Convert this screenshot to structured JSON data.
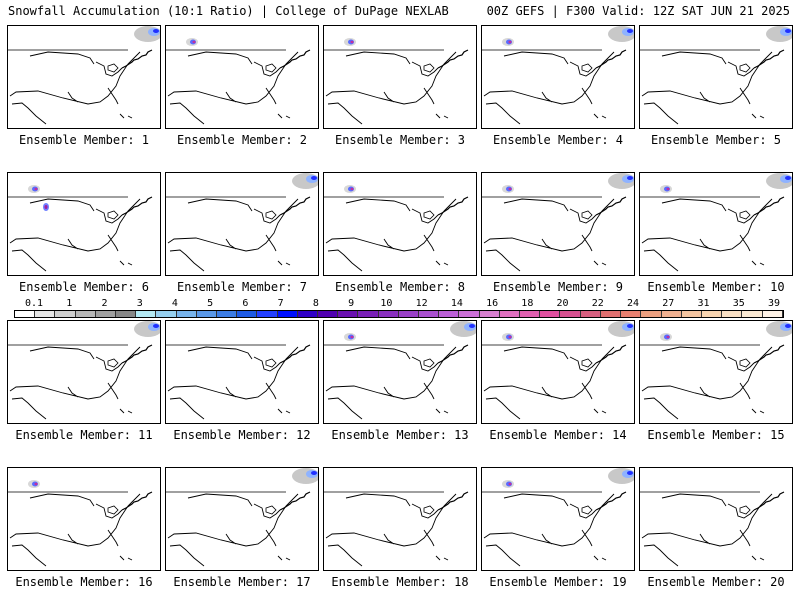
{
  "header": {
    "left": "Snowfall Accumulation (10:1 Ratio) | College of DuPage NEXLAB",
    "right": "00Z GEFS | F300 Valid: 12Z SAT JUN 21 2025"
  },
  "caption_prefix": "Ensemble Member: ",
  "members": [
    {
      "label": "Ensemble Member: 1",
      "snow": [
        "ne"
      ]
    },
    {
      "label": "Ensemble Member: 2",
      "snow": [
        "nw"
      ]
    },
    {
      "label": "Ensemble Member: 3",
      "snow": [
        "nw"
      ]
    },
    {
      "label": "Ensemble Member: 4",
      "snow": [
        "nw",
        "ne"
      ]
    },
    {
      "label": "Ensemble Member: 5",
      "snow": [
        "ne"
      ]
    },
    {
      "label": "Ensemble Member: 6",
      "snow": [
        "nw",
        "rockies"
      ]
    },
    {
      "label": "Ensemble Member: 7",
      "snow": [
        "ne"
      ]
    },
    {
      "label": "Ensemble Member: 8",
      "snow": [
        "nw"
      ]
    },
    {
      "label": "Ensemble Member: 9",
      "snow": [
        "nw",
        "ne"
      ]
    },
    {
      "label": "Ensemble Member: 10",
      "snow": [
        "nw",
        "ne"
      ]
    },
    {
      "label": "Ensemble Member: 11",
      "snow": [
        "ne"
      ]
    },
    {
      "label": "Ensemble Member: 12",
      "snow": []
    },
    {
      "label": "Ensemble Member: 13",
      "snow": [
        "nw",
        "ne"
      ]
    },
    {
      "label": "Ensemble Member: 14",
      "snow": [
        "nw",
        "ne"
      ]
    },
    {
      "label": "Ensemble Member: 15",
      "snow": [
        "nw",
        "ne"
      ]
    },
    {
      "label": "Ensemble Member: 16",
      "snow": [
        "nw"
      ]
    },
    {
      "label": "Ensemble Member: 17",
      "snow": [
        "ne"
      ]
    },
    {
      "label": "Ensemble Member: 18",
      "snow": []
    },
    {
      "label": "Ensemble Member: 19",
      "snow": [
        "nw",
        "ne"
      ]
    },
    {
      "label": "Ensemble Member: 20",
      "snow": []
    }
  ],
  "scale": {
    "labels": [
      "0.1",
      "1",
      "2",
      "3",
      "4",
      "5",
      "6",
      "7",
      "8",
      "9",
      "10",
      "12",
      "14",
      "16",
      "18",
      "20",
      "22",
      "24",
      "27",
      "31",
      "35",
      "39"
    ],
    "colors": [
      "#ffffff",
      "#e6e6e6",
      "#cfcfcf",
      "#b8b8b8",
      "#a0a0a0",
      "#888888",
      "#b4eaf5",
      "#96d0f0",
      "#78b4ec",
      "#5a98e8",
      "#3c7ce4",
      "#1e5ae4",
      "#2440ff",
      "#0010ff",
      "#3000c8",
      "#5000b0",
      "#6a10b0",
      "#7a20b8",
      "#8a30c0",
      "#9a40c8",
      "#aa50d0",
      "#bc60d8",
      "#cc70d8",
      "#d880d0",
      "#e070c0",
      "#e060b0",
      "#e050a0",
      "#d85090",
      "#d86080",
      "#e07070",
      "#e88070",
      "#eca080",
      "#f0b090",
      "#f4c4a0",
      "#f8d4b0",
      "#fae0c4",
      "#fcead4",
      "#fef2e6"
    ]
  }
}
